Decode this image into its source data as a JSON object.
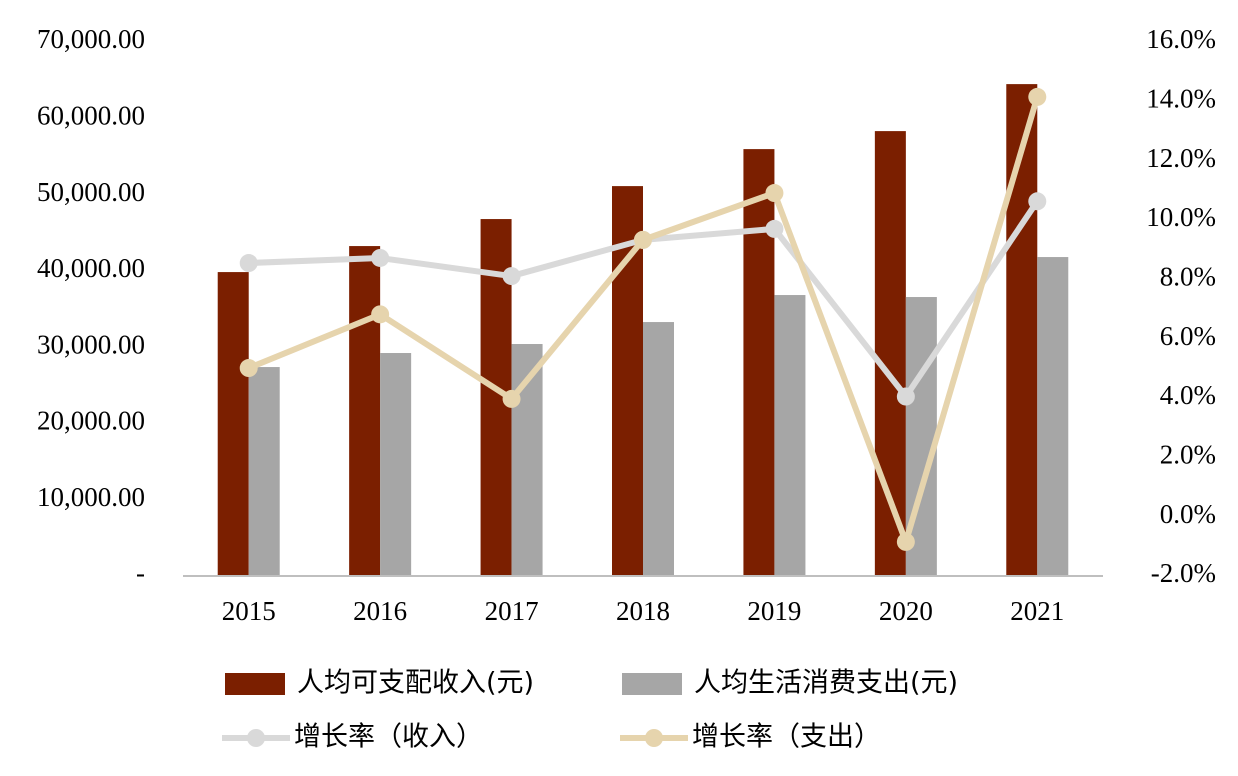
{
  "chart_data": {
    "type": "bar",
    "categories": [
      "2015",
      "2016",
      "2017",
      "2018",
      "2019",
      "2020",
      "2021"
    ],
    "series": [
      {
        "name": "人均可支配收入(元)",
        "type": "bar",
        "color": "#7b1f00",
        "values": [
          39840,
          43250,
          46790,
          51110,
          55960,
          58320,
          64480
        ]
      },
      {
        "name": "人均生活消费支出(元)",
        "type": "bar",
        "color": "#a6a6a6",
        "values": [
          27390,
          29230,
          30410,
          33290,
          36830,
          36570,
          41810
        ]
      },
      {
        "name": "增长率（收入）",
        "type": "line",
        "axis": "y2",
        "color": "#d9d9d9",
        "values": [
          8.55,
          8.72,
          8.11,
          9.33,
          9.7,
          4.05,
          10.63
        ]
      },
      {
        "name": "增长率（支出）",
        "type": "line",
        "axis": "y2",
        "color": "#e6d4ad",
        "values": [
          5.01,
          6.82,
          3.97,
          9.33,
          10.91,
          -0.85,
          14.15
        ]
      }
    ],
    "ylim": [
      0,
      70000
    ],
    "yticks": [
      {
        "value": 0,
        "label": "-"
      },
      {
        "value": 10000,
        "label": "10,000.00"
      },
      {
        "value": 20000,
        "label": "20,000.00"
      },
      {
        "value": 30000,
        "label": "30,000.00"
      },
      {
        "value": 40000,
        "label": "40,000.00"
      },
      {
        "value": 50000,
        "label": "50,000.00"
      },
      {
        "value": 60000,
        "label": "60,000.00"
      },
      {
        "value": 70000,
        "label": "70,000.00"
      }
    ],
    "y2lim": [
      -2,
      16
    ],
    "y2ticks": [
      {
        "value": -2,
        "label": "-2.0%"
      },
      {
        "value": 0,
        "label": "0.0%"
      },
      {
        "value": 2,
        "label": "2.0%"
      },
      {
        "value": 4,
        "label": "4.0%"
      },
      {
        "value": 6,
        "label": "6.0%"
      },
      {
        "value": 8,
        "label": "8.0%"
      },
      {
        "value": 10,
        "label": "10.0%"
      },
      {
        "value": 12,
        "label": "12.0%"
      },
      {
        "value": 14,
        "label": "14.0%"
      },
      {
        "value": 16,
        "label": "16.0%"
      }
    ],
    "grid": false
  }
}
